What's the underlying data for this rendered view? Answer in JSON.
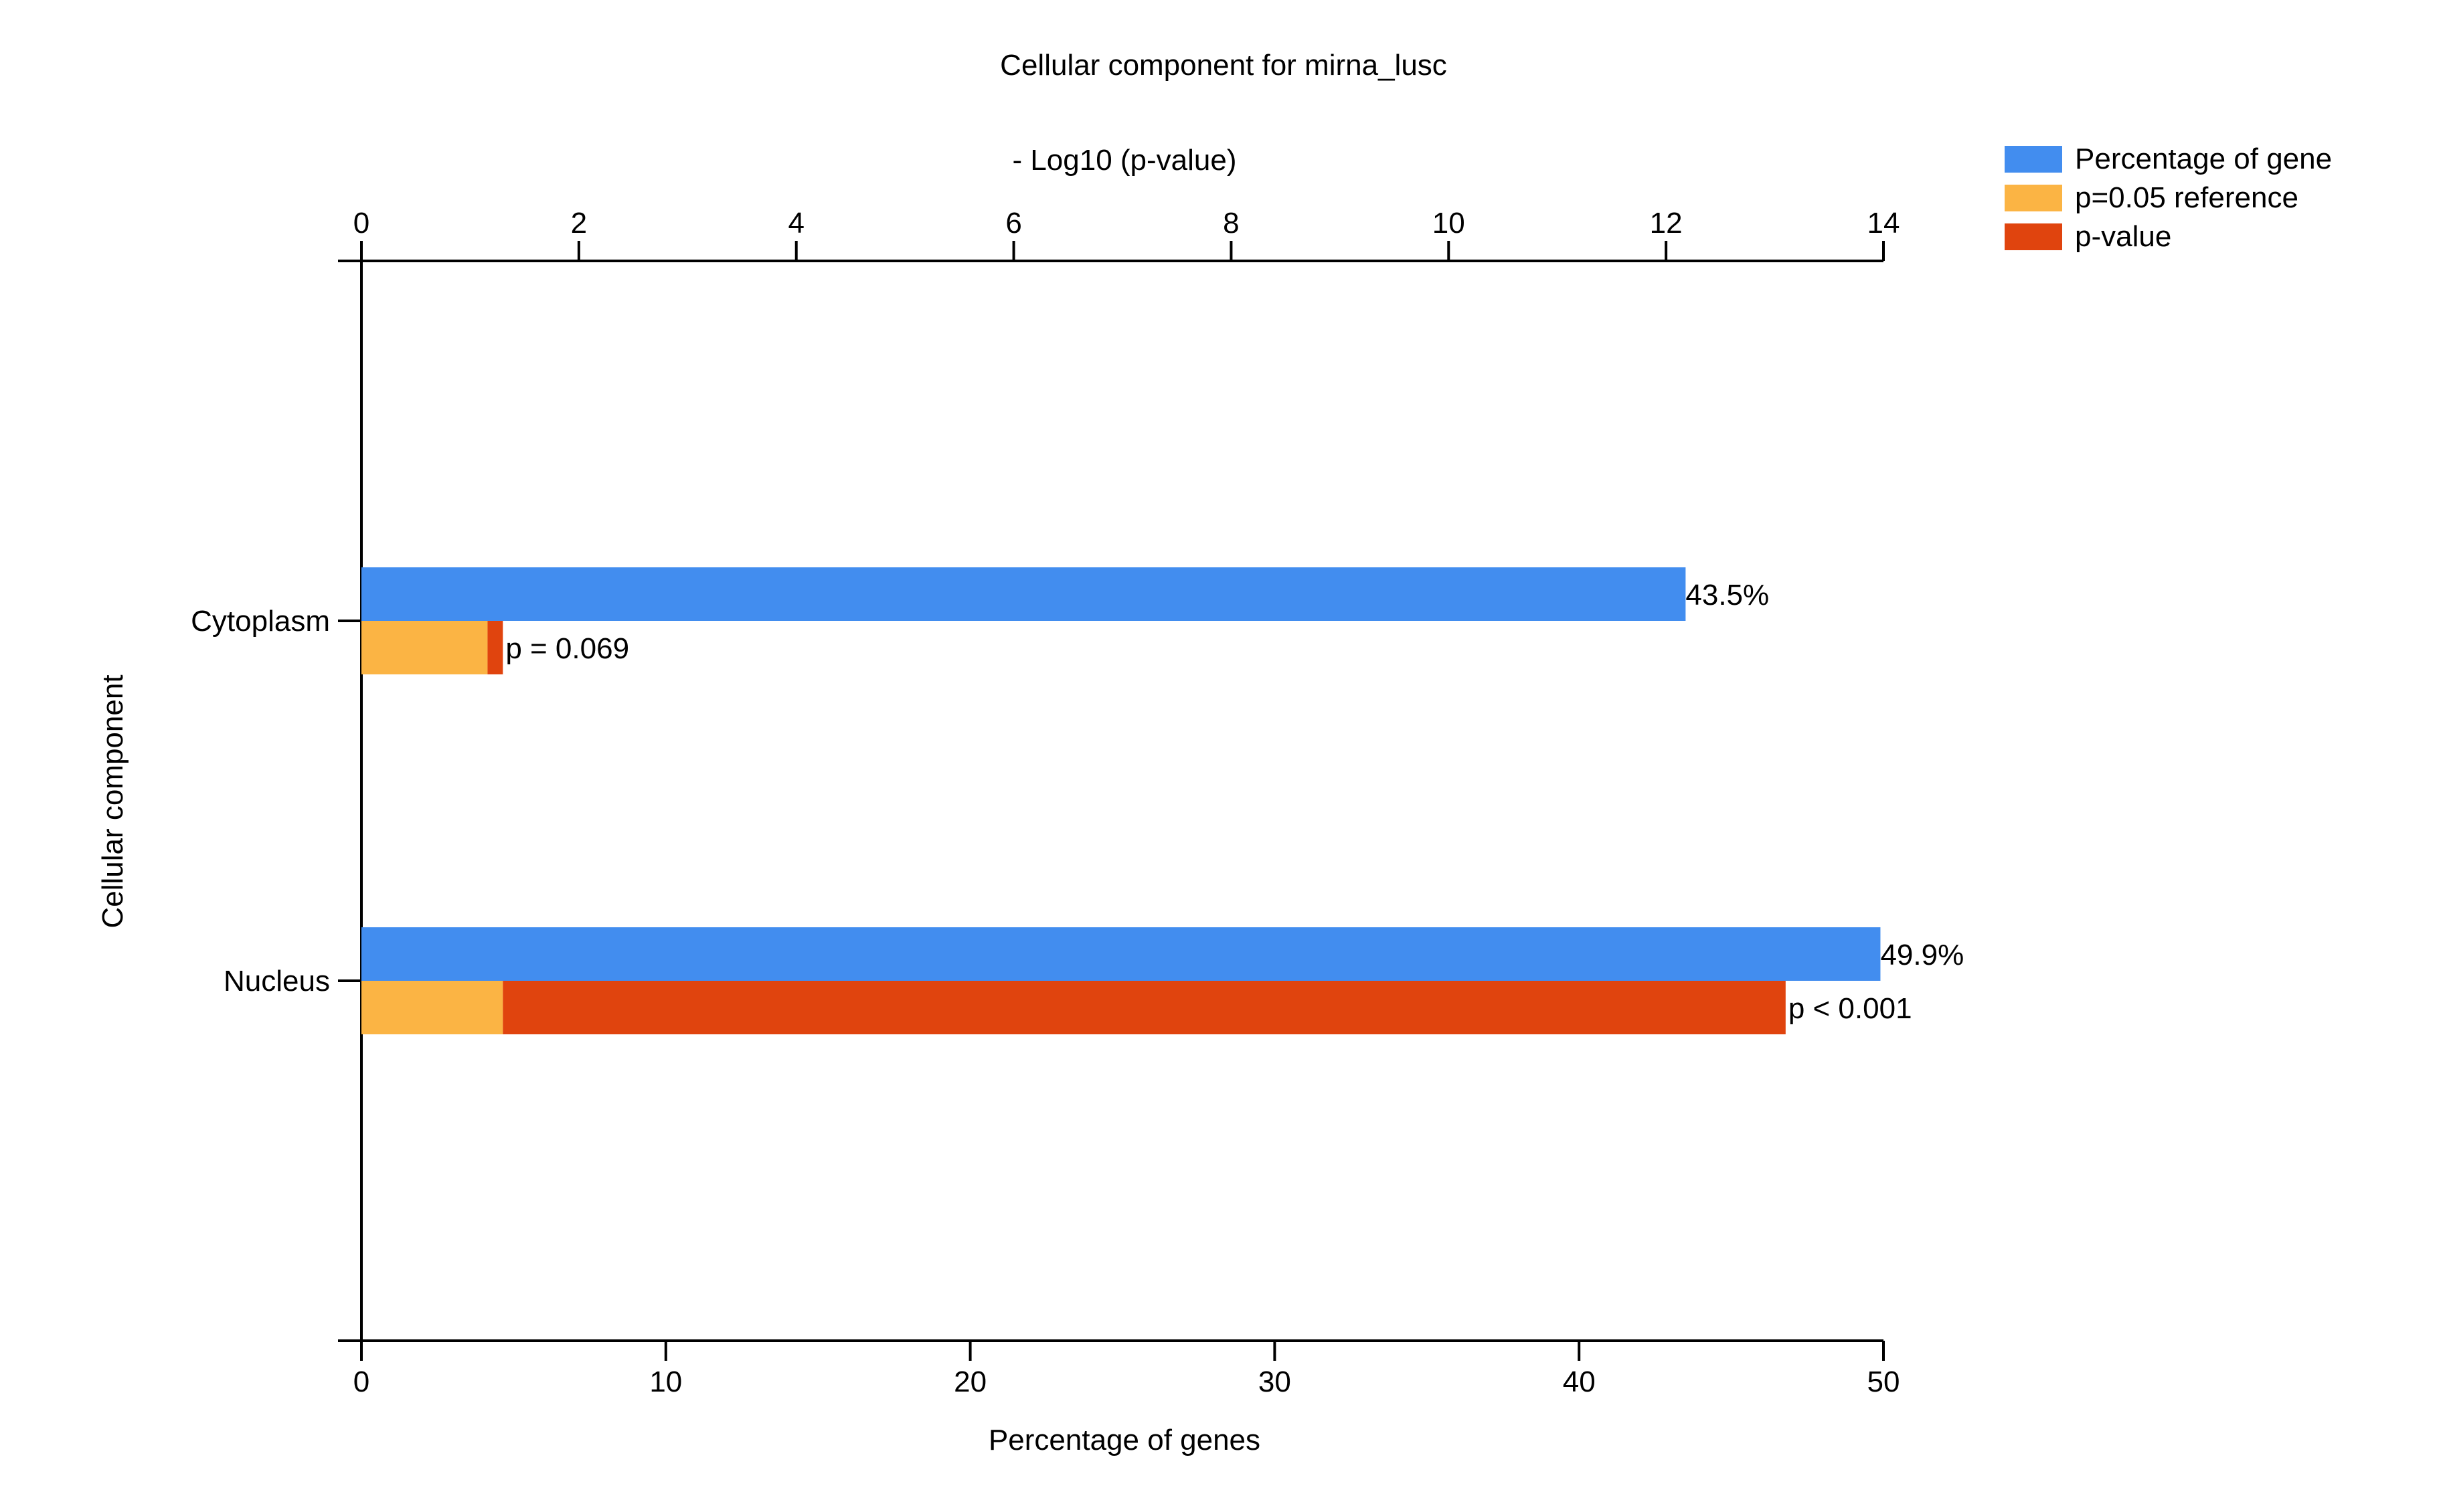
{
  "chart_data": {
    "type": "bar",
    "orientation": "horizontal",
    "title": "Cellular component for mirna_lusc",
    "ylabel": "Cellular component",
    "categories": [
      "Cytoplasm",
      "Nucleus"
    ],
    "x_bottom": {
      "label": "Percentage of genes",
      "lim": [
        0,
        50
      ],
      "ticks": [
        0,
        10,
        20,
        30,
        40,
        50
      ]
    },
    "x_top": {
      "label": "- Log10 (p-value)",
      "lim": [
        0,
        14
      ],
      "ticks": [
        0,
        2,
        4,
        6,
        8,
        10,
        12,
        14
      ]
    },
    "series": [
      {
        "name": "Percentage of gene",
        "color": "#428DEF",
        "axis": "bottom",
        "values": [
          43.5,
          49.9
        ],
        "labels": [
          "43.5%",
          "49.9%"
        ]
      },
      {
        "name": "p=0.05 reference",
        "color": "#FBB444",
        "axis": "top",
        "values": [
          1.301,
          1.301
        ]
      },
      {
        "name": "p-value",
        "color": "#E0440E",
        "axis": "top",
        "values": [
          1.16,
          13.1
        ],
        "labels": [
          "p = 0.069",
          "p < 0.001"
        ]
      }
    ],
    "legend_position": "top-right",
    "grid": false
  }
}
